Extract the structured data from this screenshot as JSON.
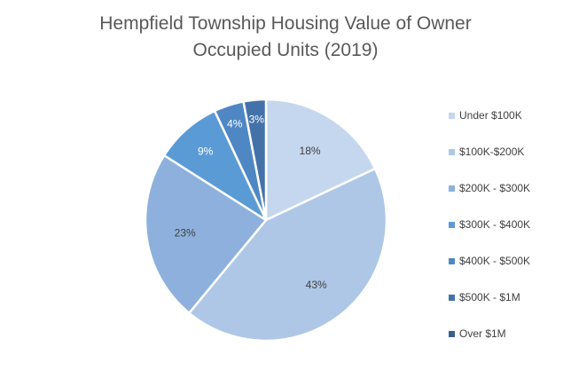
{
  "chart_data": {
    "type": "pie",
    "title_line1": "Hempfield Township Housing Value of Owner",
    "title_line2": "Occupied Units (2019)",
    "legend_position": "right",
    "slices": [
      {
        "name": "Under $100K",
        "value": 18,
        "label": "18%",
        "color": "#c5d7ee",
        "label_color": "#404040"
      },
      {
        "name": "$100K-$200K",
        "value": 43,
        "label": "43%",
        "color": "#aec7e6",
        "label_color": "#404040"
      },
      {
        "name": "$200K - $300K",
        "value": 23,
        "label": "23%",
        "color": "#8db1dc",
        "label_color": "#404040"
      },
      {
        "name": "$300K - $400K",
        "value": 9,
        "label": "9%",
        "color": "#5b9bd5",
        "label_color": "#ffffff"
      },
      {
        "name": "$400K - $500K",
        "value": 4,
        "label": "4%",
        "color": "#4f87c4",
        "label_color": "#ffffff"
      },
      {
        "name": "$500K - $1M",
        "value": 3,
        "label": "3%",
        "color": "#4472a8",
        "label_color": "#ffffff"
      },
      {
        "name": "Over $1M",
        "value": 0,
        "label": "",
        "color": "#3a5f8e",
        "label_color": "#ffffff"
      }
    ]
  }
}
